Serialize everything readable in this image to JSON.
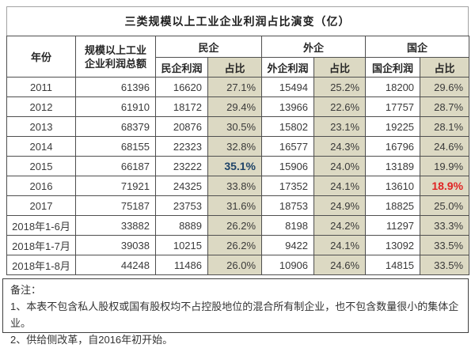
{
  "title": "三类规模以上工业企业利润占比演变（亿）",
  "table": {
    "header": {
      "year": "年份",
      "total_line1": "规模以上工业",
      "total_line2": "企业利润总额",
      "groups": [
        {
          "label": "民企",
          "profit": "民企利润",
          "share": "占比"
        },
        {
          "label": "外企",
          "profit": "外企利润",
          "share": "占比"
        },
        {
          "label": "国企",
          "profit": "国企利润",
          "share": "占比"
        }
      ]
    },
    "emphasis": [
      {
        "row": 4,
        "col": 3,
        "style": "blue"
      },
      {
        "row": 5,
        "col": 7,
        "style": "red"
      }
    ]
  },
  "notes": {
    "heading": "备注：",
    "items": [
      "1、本表不包含私人股权或国有股权均不占控股地位的混合所有制企业，也不包含数量很小的集体企业。",
      "2、供给侧改革，自2016年初开始。"
    ]
  },
  "colors": {
    "share_col_bg": "#dcd9c3",
    "highlight_blue": "#1f4468",
    "highlight_red": "#e02424",
    "grid_line": "#4f4f4f"
  },
  "chart_data": {
    "type": "table",
    "title": "三类规模以上工业企业利润占比演变（亿）",
    "columns": [
      "年份",
      "规模以上工业企业利润总额",
      "民企利润",
      "民企占比",
      "外企利润",
      "外企占比",
      "国企利润",
      "国企占比"
    ],
    "rows": [
      [
        "2011",
        61396,
        16620,
        "27.1%",
        15494,
        "25.2%",
        18200,
        "29.6%"
      ],
      [
        "2012",
        61910,
        18172,
        "29.4%",
        13966,
        "22.6%",
        17757,
        "28.7%"
      ],
      [
        "2013",
        68379,
        20876,
        "30.5%",
        15802,
        "23.1%",
        19225,
        "28.1%"
      ],
      [
        "2014",
        68155,
        22323,
        "32.8%",
        16577,
        "24.3%",
        16796,
        "24.6%"
      ],
      [
        "2015",
        66187,
        23222,
        "35.1%",
        15906,
        "24.0%",
        13189,
        "19.9%"
      ],
      [
        "2016",
        71921,
        24325,
        "33.8%",
        17352,
        "24.1%",
        13610,
        "18.9%"
      ],
      [
        "2017",
        75187,
        23753,
        "31.6%",
        18753,
        "24.9%",
        18825,
        "25.0%"
      ],
      [
        "2018年1-6月",
        33882,
        8889,
        "26.2%",
        8198,
        "24.2%",
        11297,
        "33.3%"
      ],
      [
        "2018年1-7月",
        39038,
        10215,
        "26.2%",
        9422,
        "24.1%",
        13092,
        "33.5%"
      ],
      [
        "2018年1-8月",
        44248,
        11486,
        "26.0%",
        10906,
        "24.6%",
        14815,
        "33.5%"
      ]
    ]
  }
}
